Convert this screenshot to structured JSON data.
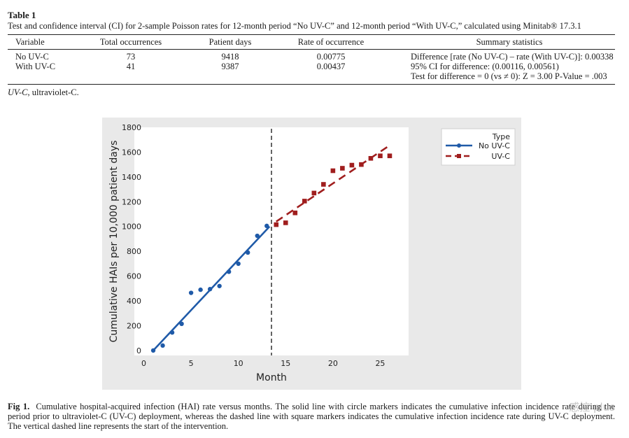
{
  "table": {
    "label": "Table 1",
    "caption": "Test and confidence interval (CI) for 2-sample Poisson rates for 12-month period “No UV-C” and 12-month period “With UV-C,” calculated using Minitab® 17.3.1",
    "headers": [
      "Variable",
      "Total occurrences",
      "Patient days",
      "Rate of occurrence",
      "Summary statistics"
    ],
    "rows": [
      {
        "variable": "No UV-C",
        "total": "73",
        "days": "9418",
        "rate": "0.00775"
      },
      {
        "variable": "With UV-C",
        "total": "41",
        "days": "9387",
        "rate": "0.00437"
      }
    ],
    "summary": [
      "Difference [rate (No UV-C) – rate (With UV-C)]: 0.00338",
      "95% CI for difference: (0.00116, 0.00561)",
      "Test for difference = 0 (vs ≠ 0): Z = 3.00 P-Value = .003"
    ],
    "abbrev_term": "UV-C",
    "abbrev_def": ", ultraviolet-C."
  },
  "figure": {
    "label": "Fig 1.",
    "caption": "Cumulative hospital-acquired infection (HAI) rate versus months. The solid line with circle markers indicates the cumulative infection incidence rate during the period prior to ultraviolet-C (UV-C) deployment, whereas the dashed line with square markers indicates the cumulative infection incidence rate during UV-C deployment. The vertical dashed line represents the start of the intervention.",
    "watermark": "感控 plus"
  },
  "chart_data": {
    "type": "scatter",
    "title": "",
    "xlabel": "Month",
    "ylabel": "Cumulative HAIs per 10,000 patient days",
    "xlim": [
      -1,
      28
    ],
    "ylim": [
      -40,
      1800
    ],
    "xticks": [
      0,
      5,
      10,
      15,
      20,
      25
    ],
    "yticks": [
      0,
      200,
      400,
      600,
      800,
      1000,
      1200,
      1400,
      1600,
      1800
    ],
    "legend_title": "Type",
    "legend_position": "top-right",
    "intervention_month": 13.5,
    "series": [
      {
        "name": "No UV-C",
        "color": "#1f5aa8",
        "marker": "circle",
        "line_style": "solid",
        "x": [
          1,
          2,
          3,
          4,
          5,
          6,
          7,
          8,
          9,
          10,
          11,
          12,
          13
        ],
        "y": [
          0,
          40,
          145,
          215,
          465,
          490,
          495,
          520,
          635,
          700,
          790,
          925,
          1005
        ],
        "fit": {
          "x": [
            1,
            13.3
          ],
          "y": [
            0,
            1000
          ]
        }
      },
      {
        "name": "UV-C",
        "color": "#a01e1e",
        "marker": "square",
        "line_style": "dashed",
        "x": [
          14,
          15,
          16,
          17,
          18,
          19,
          20,
          21,
          22,
          23,
          24,
          25,
          26
        ],
        "y": [
          1015,
          1030,
          1110,
          1205,
          1270,
          1340,
          1450,
          1470,
          1495,
          1500,
          1550,
          1570,
          1570
        ],
        "fit": {
          "x": [
            14,
            26
          ],
          "y": [
            1040,
            1655
          ]
        }
      }
    ]
  }
}
